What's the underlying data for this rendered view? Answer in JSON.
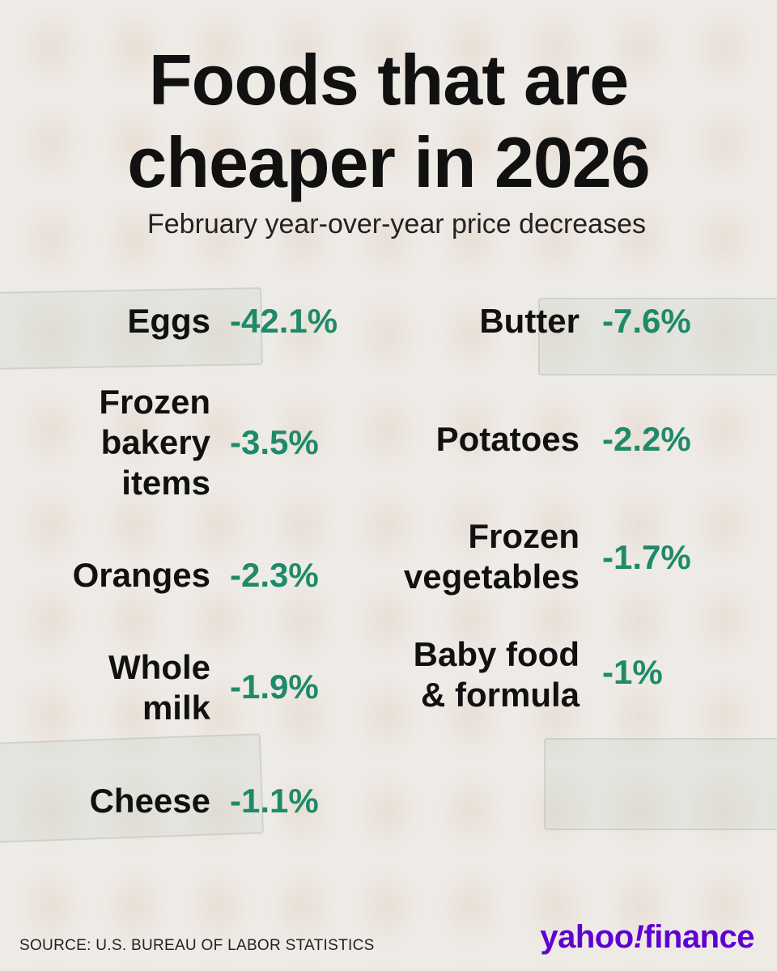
{
  "title_line1": "Foods that are",
  "title_line2": "cheaper in 2026",
  "subtitle": "February year-over-year price decreases",
  "items": [
    {
      "name": "Eggs",
      "value": "-42.1%"
    },
    {
      "name": "Frozen\nbakery\nitems",
      "value": "-3.5%"
    },
    {
      "name": "Oranges",
      "value": "-2.3%"
    },
    {
      "name": "Whole\nmilk",
      "value": "-1.9%"
    },
    {
      "name": "Cheese",
      "value": "-1.1%"
    },
    {
      "name": "Butter",
      "value": "-7.6%"
    },
    {
      "name": "Potatoes",
      "value": "-2.2%"
    },
    {
      "name": "Frozen\nvegetables",
      "value": "-1.7%"
    },
    {
      "name": "Baby food\n& formula",
      "value": "-1%"
    }
  ],
  "source": "SOURCE: U.S. BUREAU OF LABOR STATISTICS",
  "logo": {
    "part1": "yahoo",
    "bang": "!",
    "part2": "finance"
  },
  "colors": {
    "value_green": "#1f8a6a",
    "logo_purple": "#6001d2"
  }
}
